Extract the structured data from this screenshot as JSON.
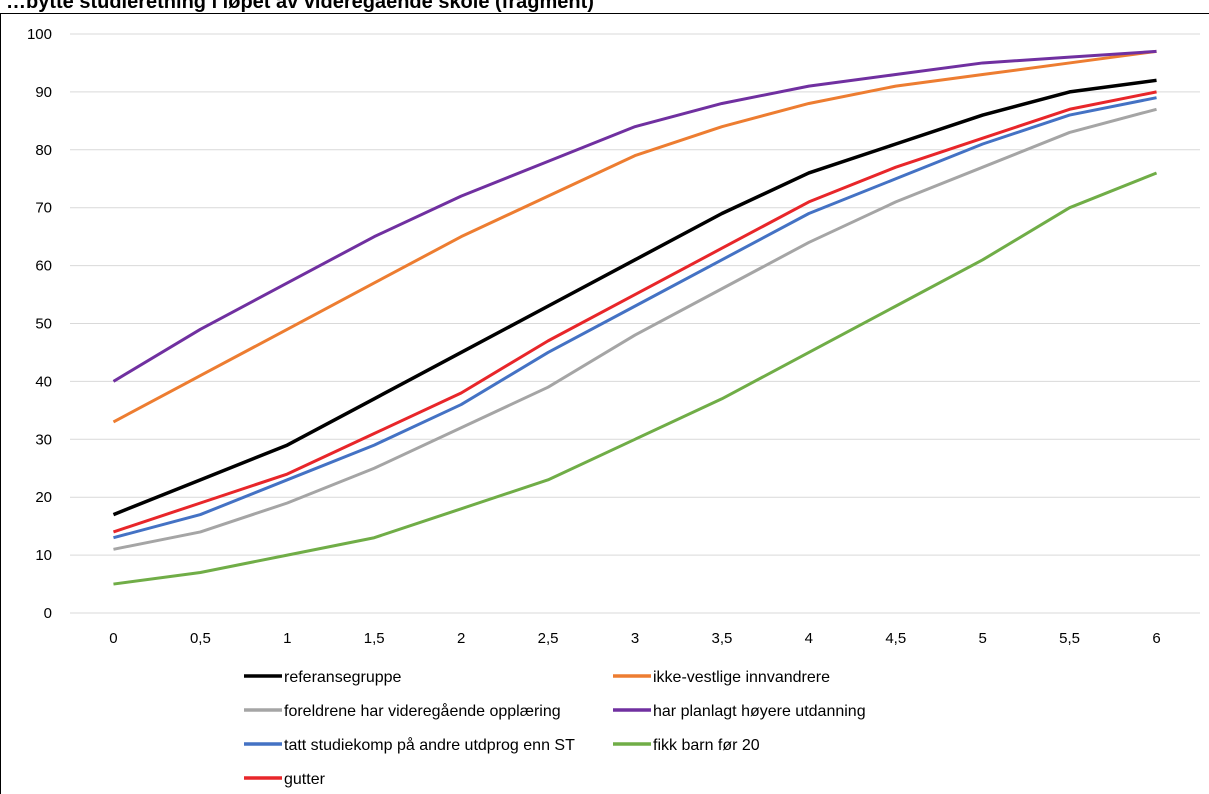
{
  "title": "…bytte studieretning i løpet av videregående skole (fragment)",
  "chart_data": {
    "type": "line",
    "title": "",
    "xlabel": "",
    "ylabel": "",
    "x": [
      "0",
      "0,5",
      "1",
      "1,5",
      "2",
      "2,5",
      "3",
      "3,5",
      "4",
      "4,5",
      "5",
      "5,5",
      "6"
    ],
    "ylim": [
      0,
      100
    ],
    "yticks": [
      0,
      10,
      20,
      30,
      40,
      50,
      60,
      70,
      80,
      90,
      100
    ],
    "grid": true,
    "legend": "bottom",
    "series": [
      {
        "name": "referansegruppe",
        "color": "#000000",
        "values": [
          17,
          23,
          29,
          37,
          45,
          53,
          61,
          69,
          76,
          81,
          86,
          90,
          92
        ]
      },
      {
        "name": "ikke-vestlige innvandrere",
        "color": "#ED7D31",
        "values": [
          33,
          41,
          49,
          57,
          65,
          72,
          79,
          84,
          88,
          91,
          93,
          95,
          97
        ]
      },
      {
        "name": "foreldrene har videregående opplæring",
        "color": "#A5A5A5",
        "values": [
          11,
          14,
          19,
          25,
          32,
          39,
          48,
          56,
          64,
          71,
          77,
          83,
          87
        ]
      },
      {
        "name": "har planlagt høyere utdanning",
        "color": "#7030A0",
        "values": [
          40,
          49,
          57,
          65,
          72,
          78,
          84,
          88,
          91,
          93,
          95,
          96,
          97
        ]
      },
      {
        "name": "tatt studiekomp på andre utdprog enn ST",
        "color": "#4472C4",
        "values": [
          13,
          17,
          23,
          29,
          36,
          45,
          53,
          61,
          69,
          75,
          81,
          86,
          89
        ]
      },
      {
        "name": "fikk barn før 20",
        "color": "#70AD47",
        "values": [
          5,
          7,
          10,
          13,
          18,
          23,
          30,
          37,
          45,
          53,
          61,
          70,
          76
        ]
      },
      {
        "name": "gutter",
        "color": "#E8262A",
        "values": [
          14,
          19,
          24,
          31,
          38,
          47,
          55,
          63,
          71,
          77,
          82,
          87,
          90
        ]
      }
    ]
  }
}
